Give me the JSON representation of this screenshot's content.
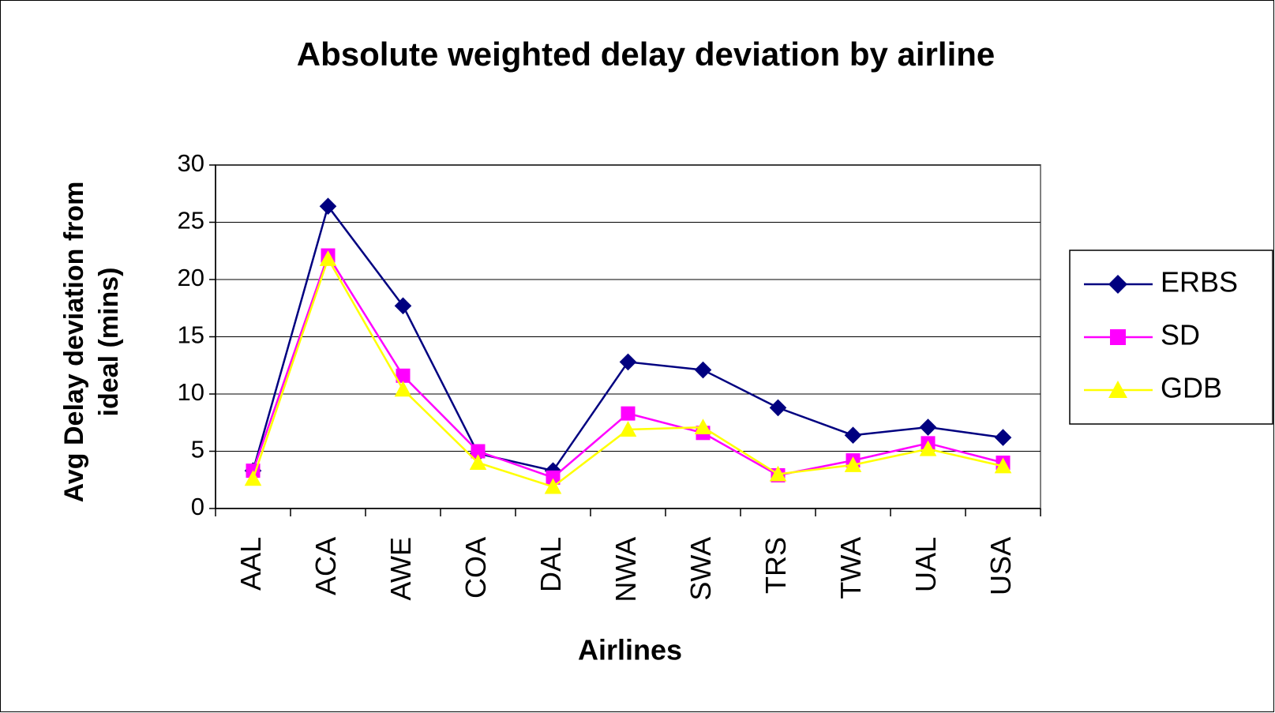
{
  "chart_data": {
    "type": "line",
    "title": "Absolute weighted delay deviation by airline",
    "x_label": "Airlines",
    "y_label": [
      "Avg Delay deviation from",
      "ideal (mins)"
    ],
    "categories": [
      "AAL",
      "ACA",
      "AWE",
      "COA",
      "DAL",
      "NWA",
      "SWA",
      "TRS",
      "TWA",
      "UAL",
      "USA"
    ],
    "series": [
      {
        "name": "ERBS",
        "color": "#000080",
        "marker": "diamond",
        "values": [
          3.3,
          26.4,
          17.7,
          4.8,
          3.3,
          12.8,
          12.1,
          8.8,
          6.4,
          7.1,
          6.2
        ]
      },
      {
        "name": "SD",
        "color": "#ff00ff",
        "marker": "square",
        "values": [
          3.3,
          22.1,
          11.6,
          5.0,
          2.7,
          8.3,
          6.6,
          2.9,
          4.2,
          5.7,
          4.0
        ]
      },
      {
        "name": "GDB",
        "color": "#ffff00",
        "marker": "triangle",
        "values": [
          2.6,
          21.8,
          10.4,
          4.0,
          1.9,
          6.9,
          7.1,
          3.0,
          3.8,
          5.2,
          3.7
        ]
      }
    ],
    "ylim": [
      0,
      30
    ],
    "yticks": [
      0,
      5,
      10,
      15,
      20,
      25,
      30
    ],
    "grid": true,
    "legend": "right"
  }
}
